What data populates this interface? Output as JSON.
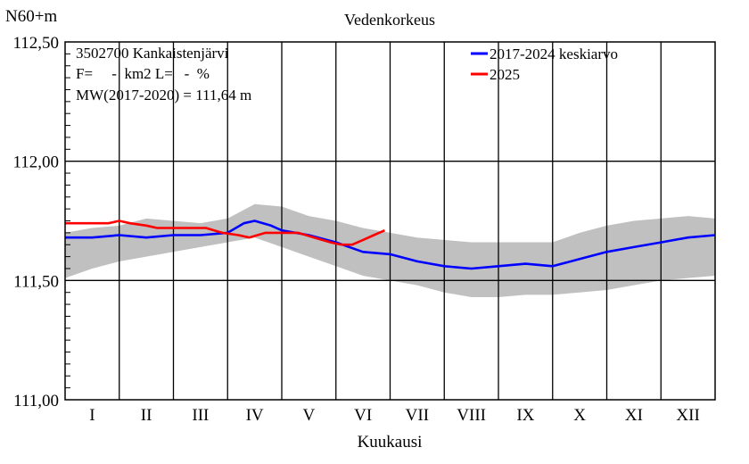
{
  "chart_data": {
    "type": "line",
    "title": "Vedenkorkeus",
    "ylabel": "N60+m",
    "xlabel": "Kuukausi",
    "ylim": [
      111.0,
      112.5
    ],
    "yticks": [
      "111,00",
      "111,50",
      "112,00",
      "112,50"
    ],
    "categories": [
      "I",
      "II",
      "III",
      "IV",
      "V",
      "VI",
      "VII",
      "VIII",
      "IX",
      "X",
      "XI",
      "XII"
    ],
    "grid": true,
    "legend_position": "top-right",
    "annotations": [
      "3502700 Kankaistenjärvi",
      "F=     -  km2 L=   -  %",
      "MW(2017-2020) = 111,64 m"
    ],
    "range_band": {
      "x": [
        0,
        0.5,
        1,
        1.5,
        2,
        2.5,
        3,
        3.5,
        4,
        4.5,
        5,
        5.5,
        6,
        6.5,
        7,
        7.5,
        8,
        8.5,
        9,
        9.5,
        10,
        10.5,
        11,
        11.5,
        12
      ],
      "upper": [
        111.7,
        111.72,
        111.73,
        111.76,
        111.75,
        111.74,
        111.76,
        111.82,
        111.81,
        111.77,
        111.75,
        111.72,
        111.7,
        111.68,
        111.67,
        111.66,
        111.66,
        111.66,
        111.66,
        111.7,
        111.73,
        111.75,
        111.76,
        111.77,
        111.76
      ],
      "lower": [
        111.51,
        111.55,
        111.58,
        111.6,
        111.62,
        111.64,
        111.66,
        111.68,
        111.64,
        111.6,
        111.56,
        111.52,
        111.5,
        111.48,
        111.45,
        111.43,
        111.43,
        111.44,
        111.44,
        111.45,
        111.46,
        111.48,
        111.5,
        111.51,
        111.52
      ]
    },
    "series": [
      {
        "name": "2017-2024 keskiarvo",
        "color": "#0000ff",
        "x": [
          0,
          0.5,
          1,
          1.5,
          2,
          2.5,
          3,
          3.3,
          3.5,
          3.8,
          4,
          4.5,
          5,
          5.5,
          6,
          6.5,
          7,
          7.5,
          8,
          8.5,
          9,
          9.5,
          10,
          10.5,
          11,
          11.5,
          12
        ],
        "values": [
          111.68,
          111.68,
          111.69,
          111.68,
          111.69,
          111.69,
          111.7,
          111.74,
          111.75,
          111.73,
          111.71,
          111.69,
          111.66,
          111.62,
          111.61,
          111.58,
          111.56,
          111.55,
          111.56,
          111.57,
          111.56,
          111.59,
          111.62,
          111.64,
          111.66,
          111.68,
          111.69
        ]
      },
      {
        "name": "2025",
        "color": "#ff0000",
        "x": [
          0,
          0.4,
          0.8,
          1.0,
          1.2,
          1.5,
          1.7,
          2.0,
          2.3,
          2.6,
          2.9,
          3.2,
          3.4,
          3.7,
          4.0,
          4.3,
          4.6,
          4.9,
          5.1,
          5.3,
          5.5,
          5.7,
          5.9
        ],
        "values": [
          111.74,
          111.74,
          111.74,
          111.75,
          111.74,
          111.73,
          111.72,
          111.72,
          111.72,
          111.72,
          111.7,
          111.69,
          111.68,
          111.7,
          111.7,
          111.7,
          111.68,
          111.66,
          111.65,
          111.65,
          111.67,
          111.69,
          111.71
        ]
      }
    ]
  }
}
